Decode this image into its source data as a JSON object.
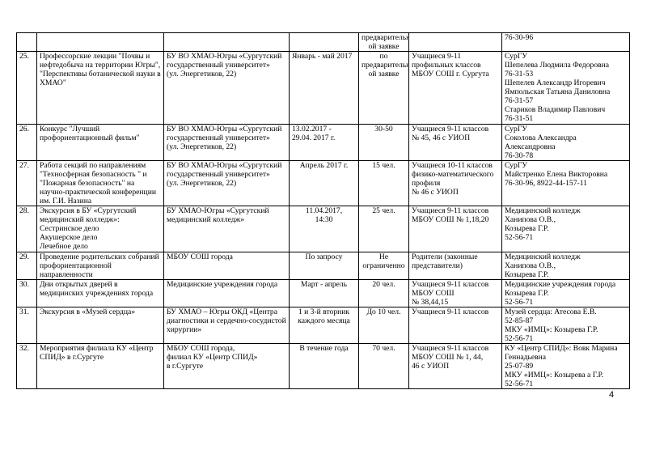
{
  "continuation_row": {
    "num": "",
    "event": "",
    "org": "",
    "date": "",
    "count": "предварительн\nой заявке",
    "audience": "",
    "contacts": "76-30-96"
  },
  "rows": [
    {
      "num": "25.",
      "event": "Профессорские лекции \"Почвы и нефтедобыча на территории Югры\", \"Перспективы ботанической науки в ХМАО\"",
      "org": "БУ ВО ХМАО-Югры «Сургутский государственный университет»\n(ул. Энергетиков, 22)",
      "date": "Январь - май 2017",
      "count": "по\nпредварительн\nой заявке",
      "audience": "Учащиеся 9-11 профильных классов МБОУ СОШ г. Сургута",
      "contacts": "СурГУ\nШепелева Людмила Федоровна\n76-31-53\nШепелев Александр Игоревич\nЯмпольская Татьяна Даниловна\n76-31-57\nСтариков Владимир Павлович\n76-31-51"
    },
    {
      "num": "26.",
      "event": "Конкурс \"Лучший профориентационный фильм\"",
      "org": "БУ ВО ХМАО-Югры «Сургутский государственный университет»\n(ул. Энергетиков, 22)",
      "date": "13.02.2017 -\n29.04. 2017 г.",
      "count": "30-50",
      "audience": "Учащиеся 9-11 классов\n№ 45, 46 с УИОП",
      "contacts": "СурГУ\nСоколова Александра Александровна\n 76-30-78"
    },
    {
      "num": "27.",
      "event": "Работа секций по направлениям \"Техносферная безопасность \" и \"Пожарная безопасность\" на научно-практической конференции им. Г.И. Назина",
      "org": "БУ ВО ХМАО-Югры «Сургутский государственный университет»\n(ул. Энергетиков, 22)",
      "date": "Апрель 2017 г.",
      "count": "15 чел.",
      "audience": "Учащиеся 10-11 классов физико-математического профиля\n№ 46 с УИОП",
      "contacts": "СурГУ\nМайстренко Елена Викторовна\n76-30-96, 8922-44-157-11"
    },
    {
      "num": "28.",
      "event": "Экскурсия в БУ «Сургутский медицинский колледж»:\nСестринское дело\nАкушерское дело\nЛечебное дело",
      "org": "БУ ХМАО-Югры «Сургутский медицинский колледж»",
      "date": "11.04.2017,\n14:30",
      "count": "25 чел.",
      "audience": "Учащиеся 9-11 классов МБОУ СОШ № 1,18,20",
      "contacts": "Медицинский колледж\nХанипова О.В.,\nКозырева Г.Р.\n52-56-71"
    },
    {
      "num": "29.",
      "event": "Проведение родительских собраний профориентационной направленности",
      "org": "МБОУ СОШ города",
      "date": "По запросу",
      "count": "Не\nограниченно",
      "audience": "Родители (законные представители)",
      "contacts": "Медицинский колледж\nХанипова О.В.,\nКозырева Г.Р."
    },
    {
      "num": "30.",
      "event": "Дни открытых дверей в медицинских учреждениях города",
      "org": "Медицинские учреждения города",
      "date": "Март - апрель",
      "count": "20 чел.",
      "audience": "Учащиеся 9-11 классов МБОУ СОШ\n№ 38,44,15",
      "contacts": "Медицинские учреждения города\nКозырева Г.Р.\n52-56-71"
    },
    {
      "num": "31.",
      "event": "Экскурсия в «Музей сердца»",
      "org": "БУ ХМАО – Югры ОКД «Центра диагностики и сердечно-сосудистой хирургии»",
      "date": "1 и 3-й вторник каждого месяца",
      "count": "До 10 чел.",
      "audience": "Учащиеся 9-11 классов",
      "contacts": "Музей сердца: Атесова Е.В.\n52-85-87\nМКУ «ИМЦ»: Козырева Г.Р.\n52-56-71"
    },
    {
      "num": "32.",
      "event": "Мероприятия филиала КУ «Центр СПИД» в г.Сургуте",
      "org": "МБОУ СОШ  города,\nфилиал КУ «Центр СПИД»\nв г.Сургуте",
      "date": "В течение года",
      "count": "70 чел.",
      "audience": "Учащиеся 9-11 классов МБОУ СОШ № 1, 44,\n46 с УИОП",
      "contacts": "КУ «Центр СПИД»: Вовк Марина Геннадьевна\n25-07-89\nМКУ «ИМЦ»: Козырева а Г.Р.\n52-56-71"
    }
  ],
  "page_number": "4"
}
